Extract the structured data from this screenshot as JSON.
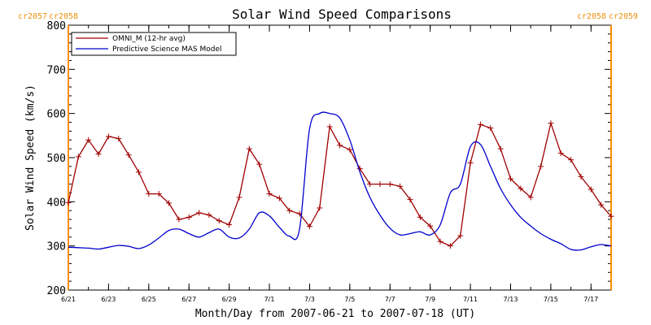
{
  "chart_data": {
    "type": "line",
    "title": "Solar Wind Speed Comparisons",
    "xlabel": "Month/Day from 2007-06-21 to 2007-07-18 (UT)",
    "ylabel": "Solar Wind Speed (km/s)",
    "xlim": [
      "2007-06-21",
      "2007-07-18"
    ],
    "ylim": [
      200,
      800
    ],
    "yticks": [
      200,
      300,
      400,
      500,
      600,
      700,
      800
    ],
    "xtick_labels": [
      "6/21",
      "6/23",
      "6/25",
      "6/27",
      "6/29",
      "7/1",
      "7/3",
      "7/5",
      "7/7",
      "7/9",
      "7/11",
      "7/13",
      "7/15",
      "7/17"
    ],
    "xtick_dates": [
      "2007-06-21",
      "2007-06-23",
      "2007-06-25",
      "2007-06-27",
      "2007-06-29",
      "2007-07-01",
      "2007-07-03",
      "2007-07-05",
      "2007-07-07",
      "2007-07-09",
      "2007-07-11",
      "2007-07-13",
      "2007-07-15",
      "2007-07-17"
    ],
    "legend_position": "top-left",
    "carrington_markers": [
      {
        "date": "2007-06-21",
        "labels": [
          "cr2057",
          "cr2058"
        ],
        "color": "#ff8c00"
      },
      {
        "date": "2007-07-18",
        "labels": [
          "cr2058",
          "cr2059"
        ],
        "color": "#ff8c00"
      }
    ],
    "series": [
      {
        "name": "OMNI_M (12-hr avg)",
        "color": "#a00000",
        "markers": true,
        "x": [
          "2007-06-21T00",
          "2007-06-21T12",
          "2007-06-22T00",
          "2007-06-22T12",
          "2007-06-23T00",
          "2007-06-23T12",
          "2007-06-24T00",
          "2007-06-24T12",
          "2007-06-25T00",
          "2007-06-25T12",
          "2007-06-26T00",
          "2007-06-26T12",
          "2007-06-27T00",
          "2007-06-27T12",
          "2007-06-28T00",
          "2007-06-28T12",
          "2007-06-29T00",
          "2007-06-29T12",
          "2007-06-30T00",
          "2007-06-30T12",
          "2007-07-01T00",
          "2007-07-01T12",
          "2007-07-02T00",
          "2007-07-02T12",
          "2007-07-03T00",
          "2007-07-03T12",
          "2007-07-04T00",
          "2007-07-04T12",
          "2007-07-05T00",
          "2007-07-05T12",
          "2007-07-06T00",
          "2007-07-06T12",
          "2007-07-07T00",
          "2007-07-07T12",
          "2007-07-08T00",
          "2007-07-08T12",
          "2007-07-09T00",
          "2007-07-09T12",
          "2007-07-10T00",
          "2007-07-10T12",
          "2007-07-11T00",
          "2007-07-11T12",
          "2007-07-12T00",
          "2007-07-12T12",
          "2007-07-13T00",
          "2007-07-13T12",
          "2007-07-14T00",
          "2007-07-14T12",
          "2007-07-15T00",
          "2007-07-15T12",
          "2007-07-16T00",
          "2007-07-16T12",
          "2007-07-17T00",
          "2007-07-17T12",
          "2007-07-18T00"
        ],
        "values": [
          398,
          502,
          540,
          508,
          548,
          543,
          506,
          467,
          418,
          418,
          397,
          360,
          365,
          375,
          370,
          357,
          348,
          410,
          520,
          485,
          418,
          408,
          380,
          373,
          344,
          386,
          570,
          528,
          518,
          475,
          440,
          440,
          440,
          435,
          405,
          365,
          345,
          310,
          300,
          323,
          488,
          575,
          567,
          520,
          452,
          430,
          410,
          480,
          578,
          510,
          495,
          457,
          428,
          393,
          367
        ]
      },
      {
        "name": "Predictive Science MAS Model",
        "color": "#0000cc",
        "markers": false,
        "x": [
          "2007-06-21T00",
          "2007-06-21T12",
          "2007-06-22T00",
          "2007-06-22T12",
          "2007-06-23T00",
          "2007-06-23T12",
          "2007-06-24T00",
          "2007-06-24T12",
          "2007-06-25T00",
          "2007-06-25T12",
          "2007-06-26T00",
          "2007-06-26T12",
          "2007-06-27T00",
          "2007-06-27T12",
          "2007-06-28T00",
          "2007-06-28T12",
          "2007-06-29T00",
          "2007-06-29T12",
          "2007-06-30T00",
          "2007-06-30T12",
          "2007-07-01T00",
          "2007-07-01T12",
          "2007-07-02T00",
          "2007-07-02T12",
          "2007-07-03T00",
          "2007-07-03T12",
          "2007-07-04T00",
          "2007-07-04T12",
          "2007-07-05T00",
          "2007-07-05T12",
          "2007-07-06T00",
          "2007-07-06T12",
          "2007-07-07T00",
          "2007-07-07T12",
          "2007-07-08T00",
          "2007-07-08T12",
          "2007-07-09T00",
          "2007-07-09T12",
          "2007-07-10T00",
          "2007-07-10T12",
          "2007-07-11T00",
          "2007-07-11T12",
          "2007-07-12T00",
          "2007-07-12T12",
          "2007-07-13T00",
          "2007-07-13T12",
          "2007-07-14T00",
          "2007-07-14T12",
          "2007-07-15T00",
          "2007-07-15T12",
          "2007-07-16T00",
          "2007-07-16T12",
          "2007-07-17T00",
          "2007-07-17T12",
          "2007-07-18T00"
        ],
        "values": [
          297,
          296,
          295,
          293,
          297,
          301,
          299,
          294,
          302,
          318,
          335,
          338,
          328,
          320,
          330,
          338,
          320,
          318,
          338,
          375,
          368,
          342,
          322,
          338,
          565,
          600,
          600,
          590,
          540,
          468,
          410,
          370,
          340,
          325,
          328,
          332,
          325,
          348,
          420,
          440,
          525,
          530,
          480,
          430,
          393,
          365,
          345,
          328,
          315,
          305,
          292,
          291,
          298,
          303,
          300
        ]
      }
    ]
  }
}
